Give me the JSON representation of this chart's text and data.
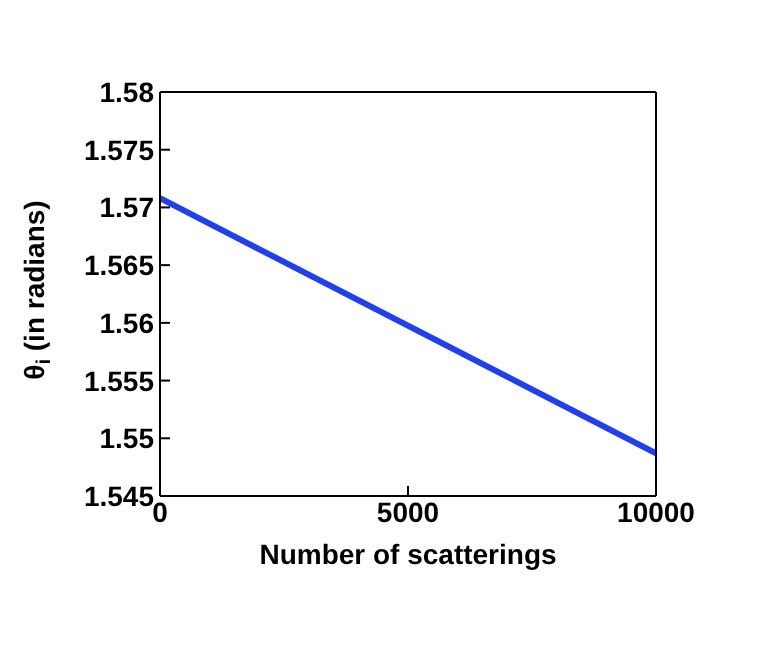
{
  "chart_data": {
    "type": "line",
    "xlabel": "Number of scatterings",
    "ylabel": "θ$_{i}$ (in radians)",
    "x": [
      0,
      10000
    ],
    "series": [
      {
        "color": "#1f3ff0",
        "values": [
          1.5708,
          1.5487
        ]
      }
    ],
    "xlim": [
      0,
      10000
    ],
    "xticks": [
      0,
      5000,
      10000
    ],
    "ylim": [
      1.545,
      1.58
    ],
    "yticks": [
      1.545,
      1.55,
      1.555,
      1.56,
      1.565,
      1.57,
      1.575,
      1.58
    ],
    "marker": "none",
    "line_style": "solid"
  }
}
